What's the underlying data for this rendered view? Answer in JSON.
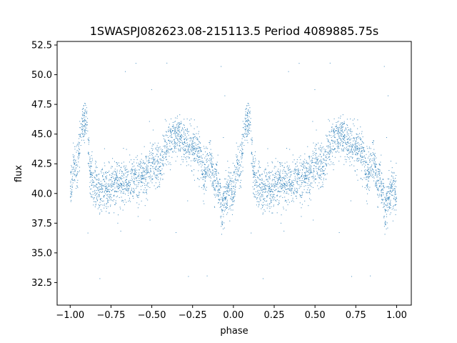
{
  "chart_data": {
    "type": "scatter",
    "title": "1SWASPJ082623.08-215113.5 Period 4089885.75s",
    "xlabel": "phase",
    "ylabel": "flux",
    "xlim": [
      -1.08,
      1.09
    ],
    "ylim": [
      30.6,
      52.8
    ],
    "x_ticks": [
      -1.0,
      -0.75,
      -0.5,
      -0.25,
      0.0,
      0.25,
      0.5,
      0.75,
      1.0
    ],
    "x_tick_labels": [
      "−1.00",
      "−0.75",
      "−0.50",
      "−0.25",
      "0.00",
      "0.25",
      "0.50",
      "0.75",
      "1.00"
    ],
    "y_ticks": [
      32.5,
      35.0,
      37.5,
      40.0,
      42.5,
      45.0,
      47.5,
      50.0,
      52.5
    ],
    "y_tick_labels": [
      "32.5",
      "35.0",
      "37.5",
      "40.0",
      "42.5",
      "45.0",
      "47.5",
      "50.0",
      "52.5"
    ],
    "grid": false,
    "point_color": "#1f77b4",
    "series": [
      {
        "phase_profile": [
          [
            0.0,
            40.0
          ],
          [
            0.02,
            42.5
          ],
          [
            0.04,
            42.0
          ],
          [
            0.06,
            44.5
          ],
          [
            0.08,
            46.0
          ],
          [
            0.1,
            46.5
          ],
          [
            0.12,
            42.0
          ],
          [
            0.14,
            41.0
          ],
          [
            0.16,
            40.5
          ],
          [
            0.18,
            40.0
          ],
          [
            0.2,
            40.5
          ],
          [
            0.22,
            40.2
          ],
          [
            0.25,
            40.5
          ],
          [
            0.28,
            41.0
          ],
          [
            0.3,
            40.8
          ],
          [
            0.33,
            41.0
          ],
          [
            0.36,
            40.5
          ],
          [
            0.38,
            41.5
          ],
          [
            0.41,
            41.0
          ],
          [
            0.44,
            41.5
          ],
          [
            0.47,
            41.5
          ],
          [
            0.5,
            42.5
          ],
          [
            0.53,
            42.3
          ],
          [
            0.56,
            42.2
          ],
          [
            0.58,
            43.5
          ],
          [
            0.6,
            44.0
          ],
          [
            0.63,
            44.8
          ],
          [
            0.66,
            45.0
          ],
          [
            0.68,
            44.8
          ],
          [
            0.71,
            44.0
          ],
          [
            0.74,
            44.2
          ],
          [
            0.76,
            43.5
          ],
          [
            0.78,
            43.5
          ],
          [
            0.8,
            42.8
          ],
          [
            0.82,
            41.5
          ],
          [
            0.84,
            42.0
          ],
          [
            0.86,
            43.0
          ],
          [
            0.88,
            41.0
          ],
          [
            0.9,
            41.5
          ],
          [
            0.93,
            38.5
          ],
          [
            0.95,
            40.0
          ],
          [
            0.97,
            40.5
          ],
          [
            1.0,
            40.0
          ]
        ],
        "x_range": [
          -1.0,
          1.0
        ],
        "scatter_sd": 0.9,
        "outlier_y_range": [
          31.6,
          51.5
        ]
      }
    ]
  }
}
